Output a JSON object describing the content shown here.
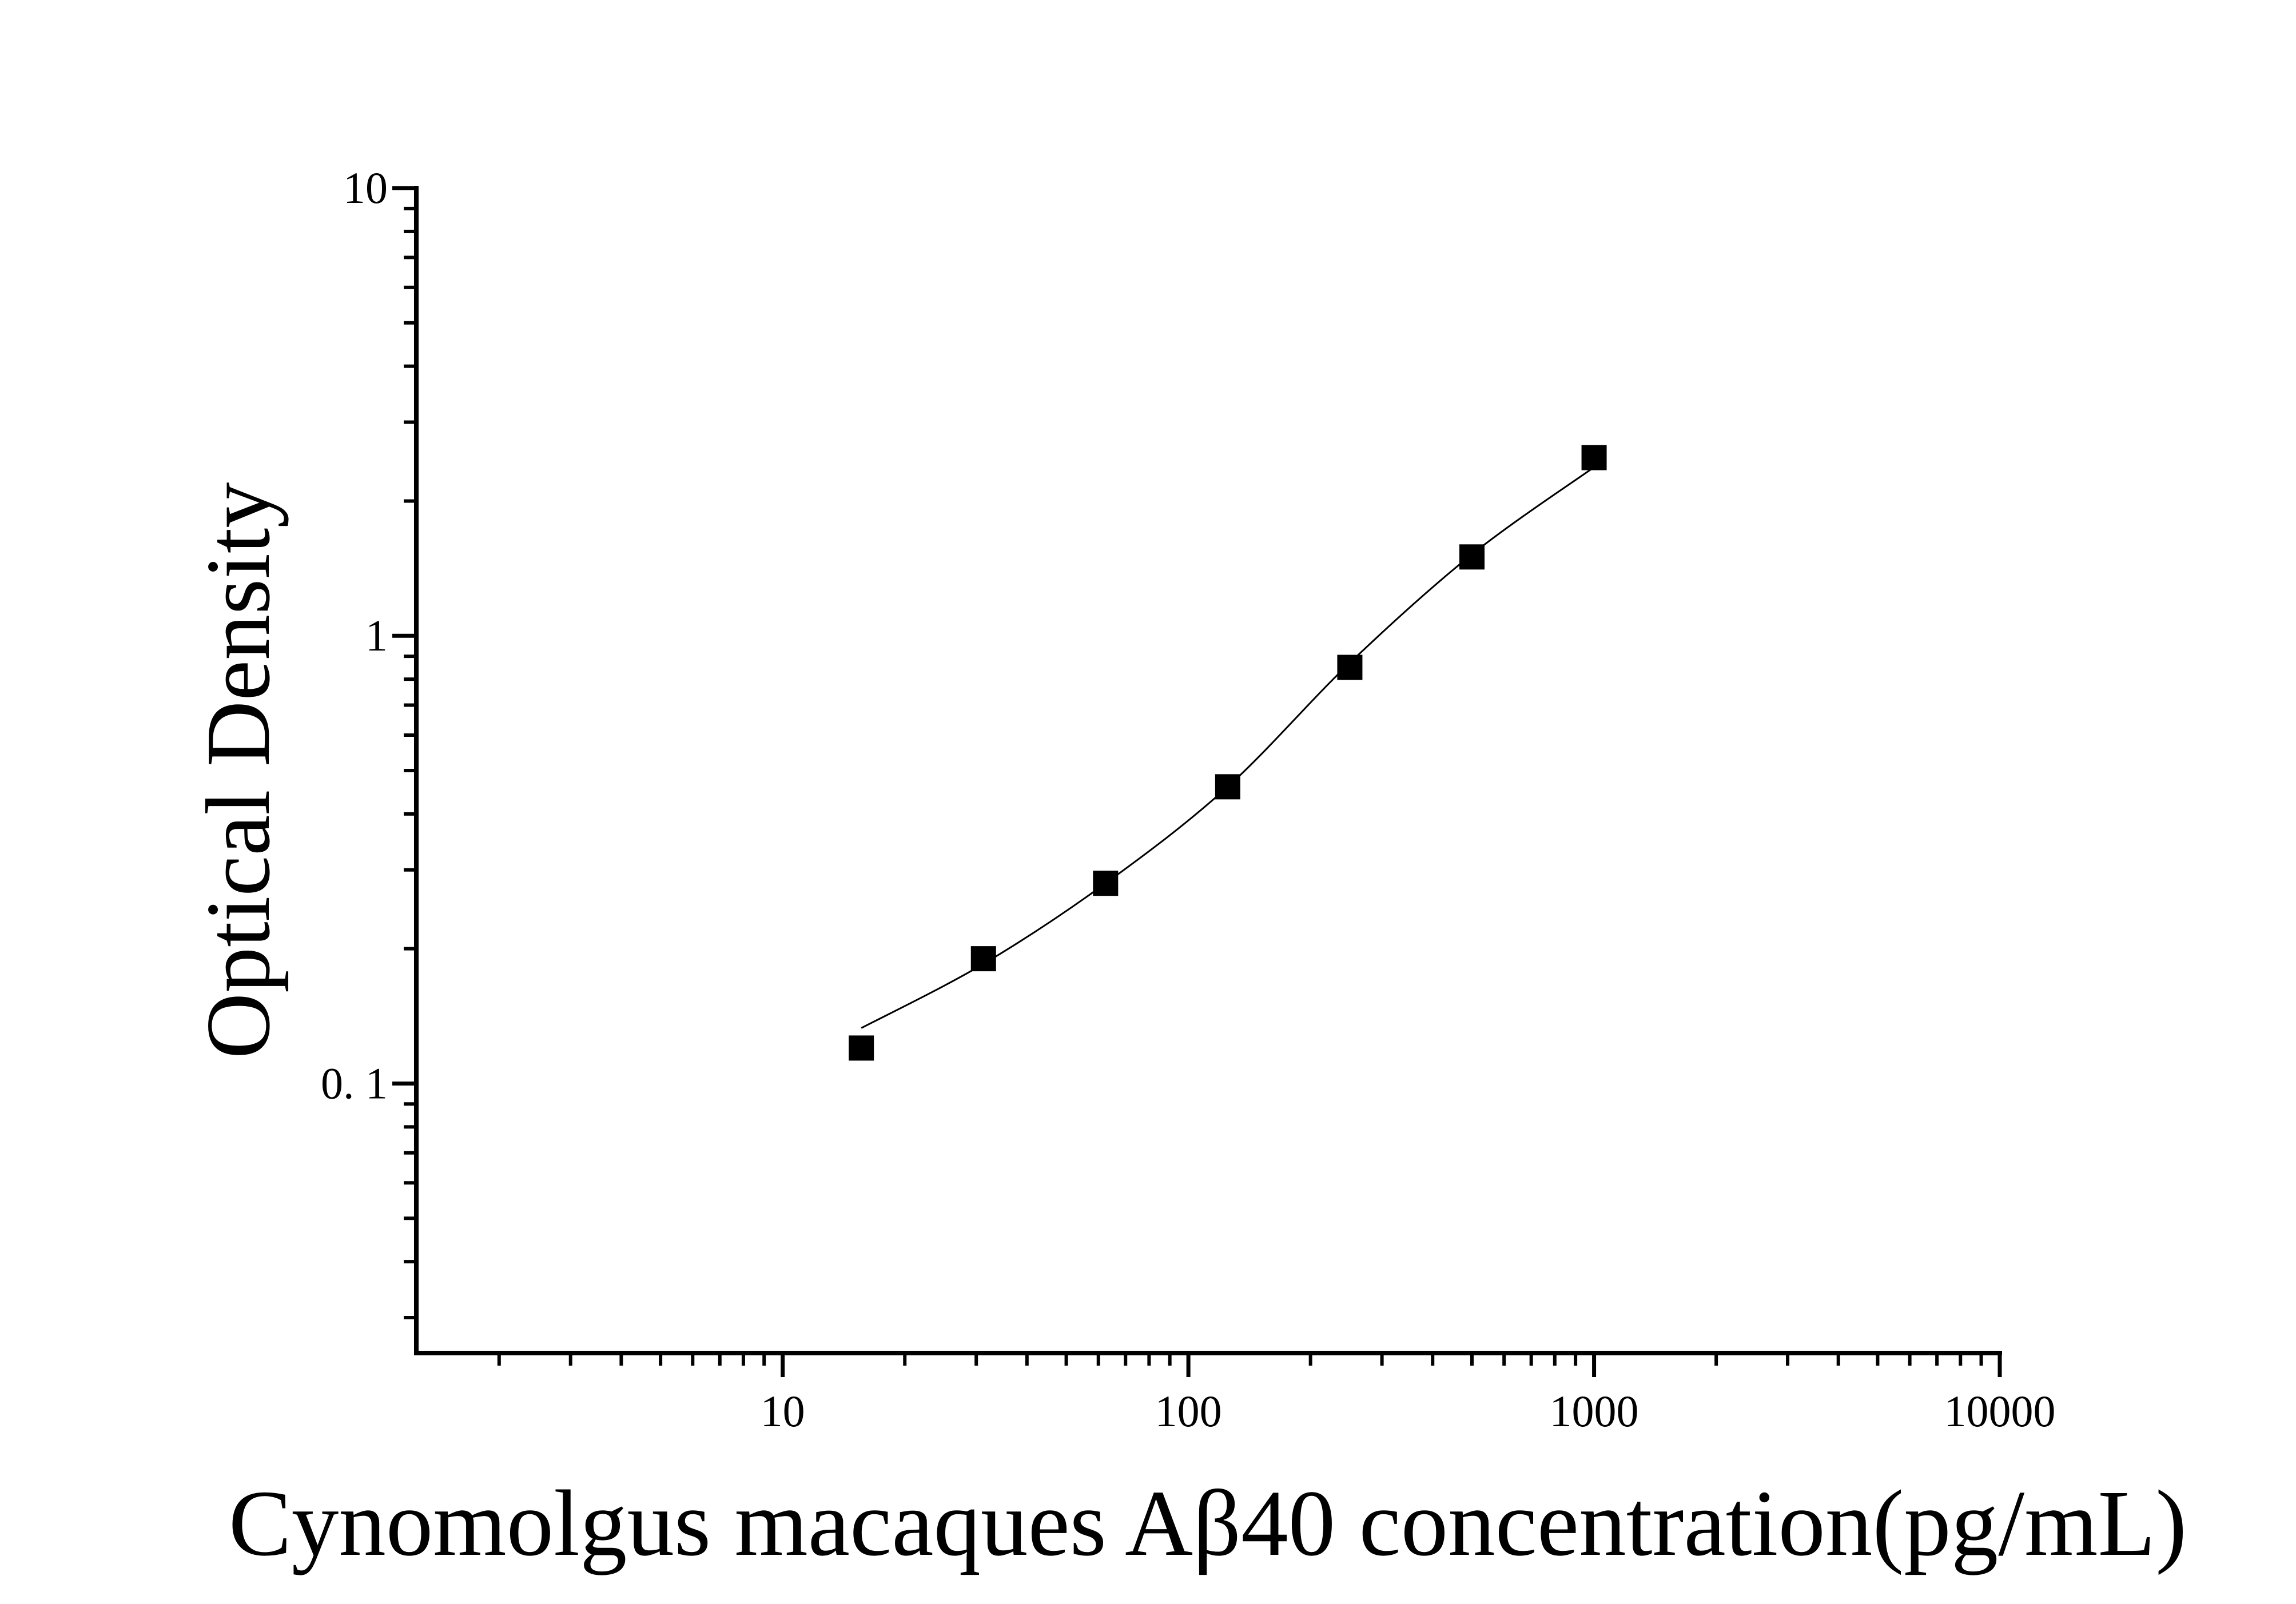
{
  "chart_data": {
    "type": "scatter",
    "x_label": "Cynomolgus macaques Aβ40 concentration(pg/mL)",
    "y_label": "Optical Density",
    "x": [
      15.625,
      31.25,
      62.5,
      125,
      250,
      500,
      1000
    ],
    "values": [
      0.12,
      0.19,
      0.28,
      0.46,
      0.85,
      1.5,
      2.5
    ],
    "color": "#000000",
    "fit": {
      "x": [
        15.625,
        31.25,
        62.5,
        125,
        250,
        500,
        1000
      ],
      "values": [
        0.133,
        0.185,
        0.28,
        0.46,
        0.87,
        1.52,
        2.38
      ]
    },
    "xlim": [
      1.25,
      10000
    ],
    "ylim": [
      0.025,
      10
    ],
    "x_log": true,
    "y_log": true,
    "xticks": [
      10,
      100,
      1000,
      10000
    ],
    "yticks": [
      {
        "value": 0.1,
        "label": "0. 1"
      },
      1,
      10
    ],
    "xticks_minor": [
      2,
      3,
      4,
      5,
      6,
      7,
      8,
      9,
      20,
      30,
      40,
      50,
      60,
      70,
      80,
      90,
      200,
      300,
      400,
      500,
      600,
      700,
      800,
      900,
      2000,
      3000,
      4000,
      5000,
      6000,
      7000,
      8000,
      9000
    ],
    "yticks_minor": [
      0.03,
      0.04,
      0.05,
      0.06,
      0.07,
      0.08,
      0.09,
      0.2,
      0.3,
      0.4,
      0.5,
      0.6,
      0.7,
      0.8,
      0.9,
      2,
      3,
      4,
      5,
      6,
      7,
      8,
      9
    ],
    "grid": false
  }
}
